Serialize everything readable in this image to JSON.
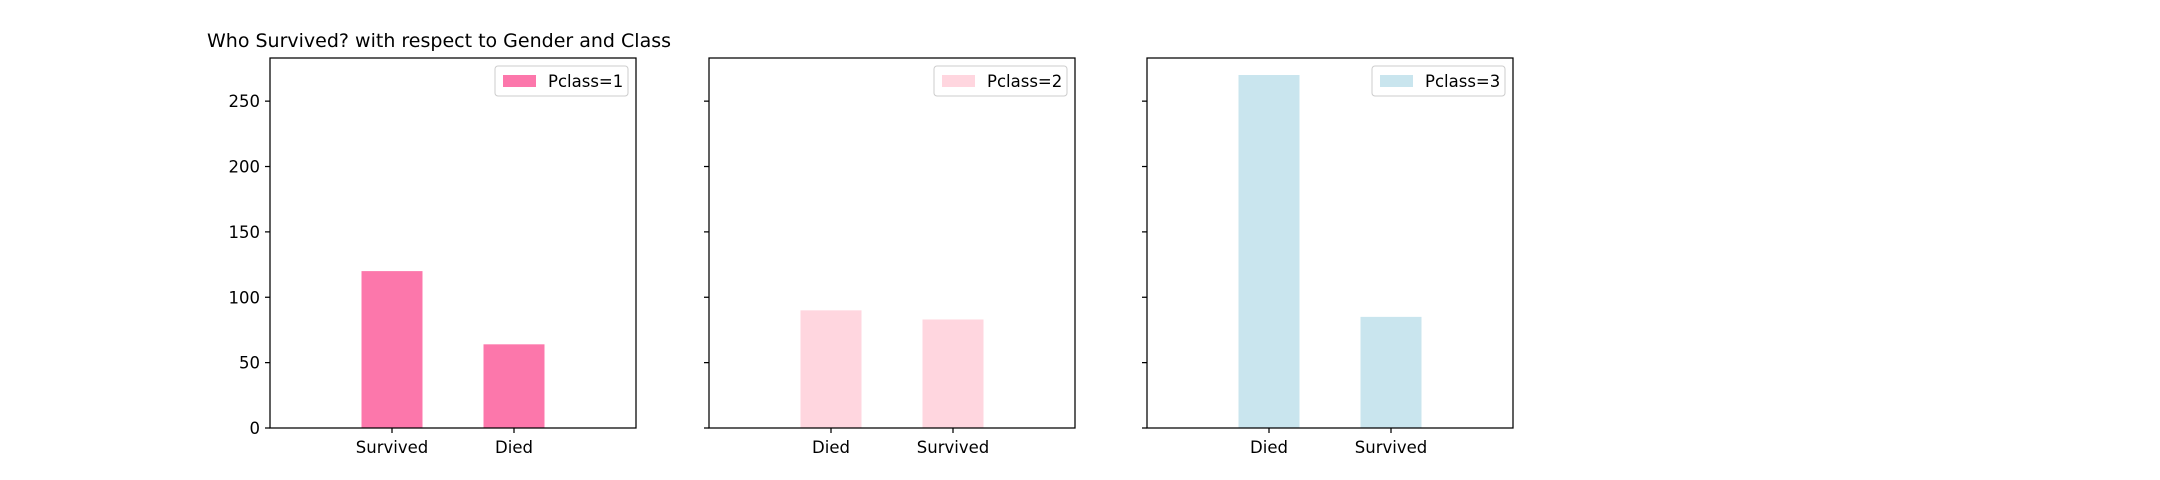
{
  "chart_data": [
    {
      "type": "bar",
      "title": "Who Survived? with respect to Gender and Class",
      "categories": [
        "Survived",
        "Died"
      ],
      "series": [
        {
          "name": "Pclass=1",
          "values": [
            120,
            64
          ]
        }
      ],
      "color": "#fc77ab",
      "ylim": [
        0,
        283
      ],
      "yticks": [
        0,
        50,
        100,
        150,
        200,
        250
      ],
      "legend": "top-right",
      "grid": false
    },
    {
      "type": "bar",
      "title": "",
      "categories": [
        "Died",
        "Survived"
      ],
      "series": [
        {
          "name": "Pclass=2",
          "values": [
            90,
            83
          ]
        }
      ],
      "color": "#ffd6df",
      "ylim": [
        0,
        283
      ],
      "yticks": [
        0,
        50,
        100,
        150,
        200,
        250
      ],
      "legend": "top-right",
      "grid": false
    },
    {
      "type": "bar",
      "title": "",
      "categories": [
        "Died",
        "Survived"
      ],
      "series": [
        {
          "name": "Pclass=3",
          "values": [
            270,
            85
          ]
        }
      ],
      "color": "#c9e5ee",
      "ylim": [
        0,
        283
      ],
      "yticks": [
        0,
        50,
        100,
        150,
        200,
        250
      ],
      "legend": "top-right",
      "grid": false
    }
  ]
}
